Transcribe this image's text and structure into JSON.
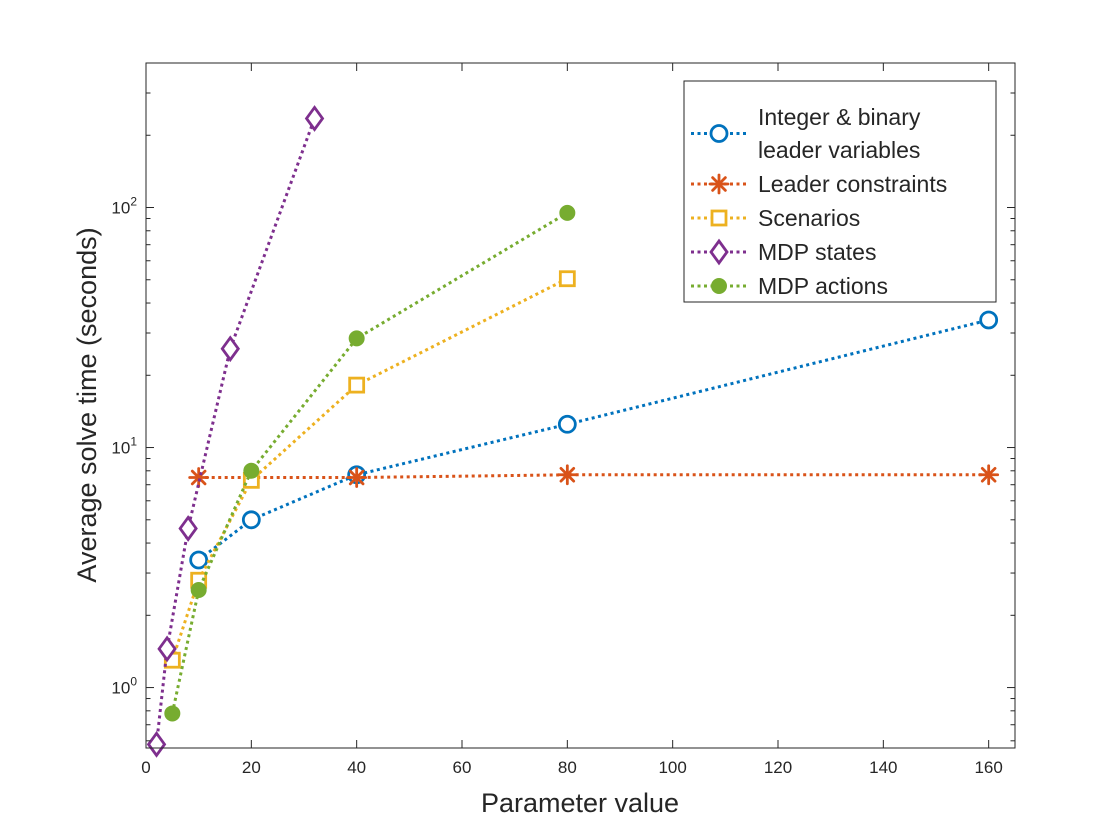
{
  "chart_data": {
    "type": "line",
    "title": "",
    "xlabel": "Parameter value",
    "ylabel": "Average solve time (seconds)",
    "xlim": [
      0,
      165
    ],
    "ylim": [
      0.56,
      400
    ],
    "yscale": "log",
    "xticks": [
      0,
      20,
      40,
      60,
      80,
      100,
      120,
      140,
      160
    ],
    "xtick_labels": [
      "0",
      "20",
      "40",
      "60",
      "80",
      "100",
      "120",
      "140",
      "160"
    ],
    "yticks": [
      {
        "value": 1,
        "base": "10",
        "exp": "0"
      },
      {
        "value": 10,
        "base": "10",
        "exp": "1"
      },
      {
        "value": 100,
        "base": "10",
        "exp": "2"
      }
    ],
    "grid": false,
    "legend_position": "top-right",
    "series": [
      {
        "name": "Integer & binary leader variables",
        "legend_lines": [
          "Integer & binary",
          "leader variables"
        ],
        "marker": "open-circle",
        "color": "#0072BD",
        "points": [
          {
            "x": 10,
            "y": 3.4
          },
          {
            "x": 20,
            "y": 5.0
          },
          {
            "x": 40,
            "y": 7.7
          },
          {
            "x": 80,
            "y": 12.5
          },
          {
            "x": 160,
            "y": 34
          }
        ]
      },
      {
        "name": "Leader constraints",
        "legend_lines": [
          "Leader constraints"
        ],
        "marker": "asterisk",
        "color": "#D95319",
        "points": [
          {
            "x": 10,
            "y": 7.5
          },
          {
            "x": 40,
            "y": 7.5
          },
          {
            "x": 80,
            "y": 7.7
          },
          {
            "x": 160,
            "y": 7.7
          }
        ]
      },
      {
        "name": "Scenarios",
        "legend_lines": [
          "Scenarios"
        ],
        "marker": "open-square",
        "color": "#EDB120",
        "points": [
          {
            "x": 5,
            "y": 1.3
          },
          {
            "x": 10,
            "y": 2.8
          },
          {
            "x": 20,
            "y": 7.3
          },
          {
            "x": 40,
            "y": 18.2
          },
          {
            "x": 80,
            "y": 50.5
          }
        ]
      },
      {
        "name": "MDP states",
        "legend_lines": [
          "MDP states"
        ],
        "marker": "open-diamond",
        "color": "#7E2F8E",
        "points": [
          {
            "x": 2,
            "y": 0.58
          },
          {
            "x": 4,
            "y": 1.45
          },
          {
            "x": 8,
            "y": 4.6
          },
          {
            "x": 16,
            "y": 25.8
          },
          {
            "x": 32,
            "y": 235
          }
        ]
      },
      {
        "name": "MDP actions",
        "legend_lines": [
          "MDP actions"
        ],
        "marker": "filled-circle",
        "color": "#77AC30",
        "points": [
          {
            "x": 5,
            "y": 0.78
          },
          {
            "x": 10,
            "y": 2.55
          },
          {
            "x": 20,
            "y": 8.0
          },
          {
            "x": 40,
            "y": 28.5
          },
          {
            "x": 80,
            "y": 95
          }
        ]
      }
    ]
  }
}
